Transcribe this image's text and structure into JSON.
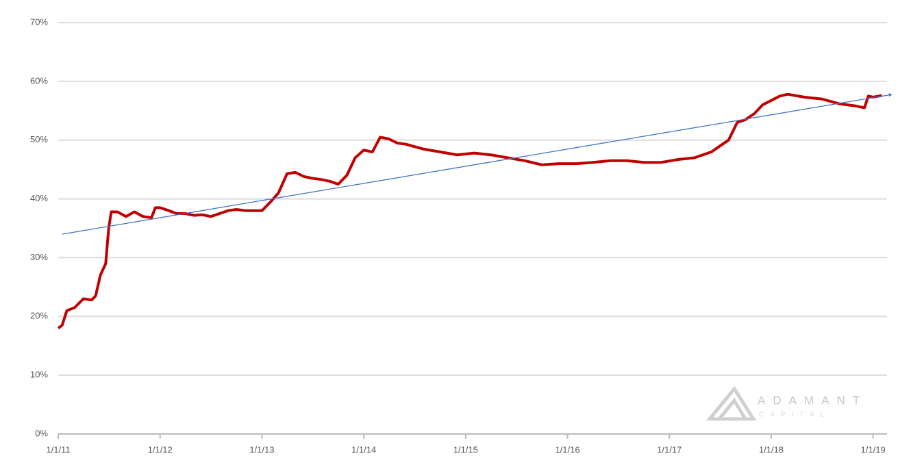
{
  "chart_data": {
    "type": "line",
    "ylim": [
      0,
      70
    ],
    "yticks": [
      {
        "value": 0,
        "label": "0%"
      },
      {
        "value": 10,
        "label": "10%"
      },
      {
        "value": 20,
        "label": "20%"
      },
      {
        "value": 30,
        "label": "30%"
      },
      {
        "value": 40,
        "label": "40%"
      },
      {
        "value": 50,
        "label": "50%"
      },
      {
        "value": 60,
        "label": "60%"
      },
      {
        "value": 70,
        "label": "70%"
      }
    ],
    "xlim": [
      "1/1/11",
      "2/20/19"
    ],
    "xticks": [
      "1/1/11",
      "1/1/12",
      "1/1/13",
      "1/1/14",
      "1/1/15",
      "1/1/16",
      "1/1/17",
      "1/1/18",
      "1/1/19"
    ],
    "grid": true,
    "series": [
      {
        "color": "#c00000",
        "x": [
          "1/1/11",
          "1/15/11",
          "2/1/11",
          "3/1/11",
          "4/1/11",
          "5/1/11",
          "5/15/11",
          "6/1/11",
          "6/20/11",
          "7/1/11",
          "7/10/11",
          "8/1/11",
          "9/1/11",
          "10/1/11",
          "11/1/11",
          "12/1/11",
          "12/15/11",
          "1/1/12",
          "2/1/12",
          "3/1/12",
          "4/1/12",
          "5/1/12",
          "6/1/12",
          "7/1/12",
          "8/1/12",
          "9/1/12",
          "10/1/12",
          "11/1/12",
          "12/1/12",
          "1/1/13",
          "2/1/13",
          "3/1/13",
          "4/1/13",
          "5/1/13",
          "6/1/13",
          "7/1/13",
          "8/1/13",
          "9/1/13",
          "10/1/13",
          "11/1/13",
          "12/1/13",
          "1/1/14",
          "2/1/14",
          "3/1/14",
          "4/1/14",
          "5/1/14",
          "6/1/14",
          "8/1/14",
          "10/1/14",
          "12/1/14",
          "2/1/15",
          "4/1/15",
          "6/1/15",
          "8/1/15",
          "10/1/15",
          "12/1/15",
          "2/1/16",
          "4/1/16",
          "6/1/16",
          "8/1/16",
          "10/1/16",
          "12/1/16",
          "2/1/17",
          "4/1/17",
          "6/1/17",
          "7/1/17",
          "8/1/17",
          "9/1/17",
          "10/1/17",
          "11/1/17",
          "12/1/17",
          "2/1/18",
          "3/1/18",
          "5/1/18",
          "7/1/18",
          "9/1/18",
          "11/1/18",
          "12/1/18",
          "12/15/18",
          "1/1/19",
          "2/1/19"
        ],
        "values": [
          18,
          18.5,
          21,
          21.5,
          23,
          22.8,
          23.5,
          27,
          29,
          35,
          37.8,
          37.8,
          37,
          37.8,
          37,
          36.8,
          38.5,
          38.5,
          38,
          37.5,
          37.5,
          37.2,
          37.3,
          37,
          37.5,
          38,
          38.2,
          38,
          38,
          38,
          39.5,
          41,
          44.3,
          44.5,
          43.8,
          43.5,
          43.3,
          43,
          42.5,
          44,
          47,
          48.3,
          48,
          50.5,
          50.2,
          49.5,
          49.3,
          48.5,
          48,
          47.5,
          47.8,
          47.5,
          47,
          46.5,
          45.8,
          46,
          46,
          46.2,
          46.5,
          46.5,
          46.2,
          46.2,
          46.7,
          47,
          48,
          49,
          50,
          53,
          53.5,
          54.5,
          56,
          57.5,
          57.8,
          57.3,
          57,
          56.2,
          55.8,
          55.5,
          57.5,
          57.3,
          57.6
        ]
      },
      {
        "color": "#4472c4",
        "x": [
          "1/15/11",
          "3/1/19"
        ],
        "values": [
          34,
          57.7
        ]
      }
    ],
    "annotations": [
      "ADAMANT",
      "CAPITAL"
    ]
  }
}
